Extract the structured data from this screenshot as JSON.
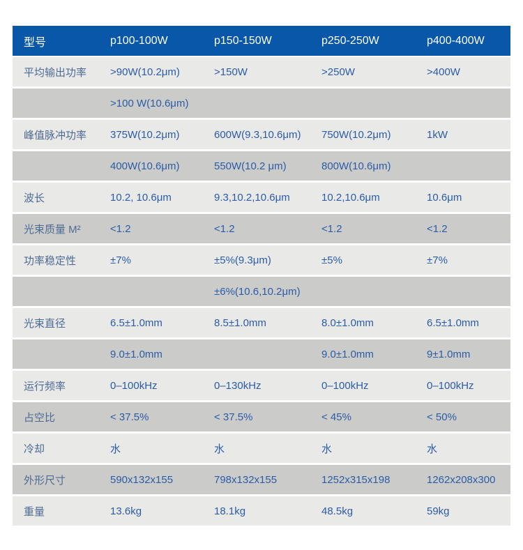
{
  "colors": {
    "header_bg": "#0957a8",
    "header_text": "#ffffff",
    "row_light": "#e9e9e7",
    "row_dark": "#cbcbc9",
    "label_text": "#4e6b95",
    "value_text": "#2b5ca8",
    "page_bg": "#ffffff"
  },
  "table": {
    "header": [
      "型号",
      "p100-100W",
      "p150-150W",
      "p250-250W",
      "p400-400W"
    ],
    "rows": [
      {
        "label": "平均输出功率",
        "shade": "light",
        "cells": [
          ">90W(10.2μm)",
          ">150W",
          ">250W",
          ">400W"
        ]
      },
      {
        "label": "",
        "shade": "dark",
        "cells": [
          ">100 W(10.6μm)",
          "",
          "",
          ""
        ]
      },
      {
        "label": "峰值脉冲功率",
        "shade": "light",
        "cells": [
          "375W(10.2μm)",
          "600W(9.3,10.6μm)",
          "750W(10.2μm)",
          "1kW"
        ]
      },
      {
        "label": "",
        "shade": "dark",
        "cells": [
          "400W(10.6μm)",
          "550W(10.2 μm)",
          "800W(10.6μm)",
          ""
        ]
      },
      {
        "label": "波长",
        "shade": "light",
        "cells": [
          "10.2, 10.6μm",
          "9.3,10.2,10.6μm",
          "10.2,10.6μm",
          "10.6μm"
        ]
      },
      {
        "label": "光束质量 M²",
        "shade": "dark",
        "cells": [
          "<1.2",
          "<1.2",
          "<1.2",
          "<1.2"
        ]
      },
      {
        "label": "功率稳定性",
        "shade": "light",
        "cells": [
          "±7%",
          "±5%(9.3μm)",
          "±5%",
          "±7%"
        ]
      },
      {
        "label": "",
        "shade": "dark",
        "cells": [
          "",
          "±6%(10.6,10.2μm)",
          "",
          ""
        ]
      },
      {
        "label": "光束直径",
        "shade": "light",
        "cells": [
          "6.5±1.0mm",
          "8.5±1.0mm",
          "8.0±1.0mm",
          "6.5±1.0mm"
        ]
      },
      {
        "label": "",
        "shade": "dark",
        "cells": [
          "9.0±1.0mm",
          "",
          "9.0±1.0mm",
          "9±1.0mm"
        ]
      },
      {
        "label": "运行频率",
        "shade": "light",
        "cells": [
          "0–100kHz",
          "0–130kHz",
          "0–100kHz",
          "0–100kHz"
        ]
      },
      {
        "label": "占空比",
        "shade": "dark",
        "cells": [
          "< 37.5%",
          "< 37.5%",
          "< 45%",
          "< 50%"
        ]
      },
      {
        "label": "冷却",
        "shade": "light",
        "cells": [
          "水",
          "水",
          "水",
          "水"
        ]
      },
      {
        "label": "外形尺寸",
        "shade": "dark",
        "cells": [
          "590x132x155",
          "798x132x155",
          "1252x315x198",
          "1262x208x300"
        ]
      },
      {
        "label": "重量",
        "shade": "light",
        "cells": [
          "13.6kg",
          "18.1kg",
          "48.5kg",
          "59kg"
        ]
      }
    ]
  }
}
